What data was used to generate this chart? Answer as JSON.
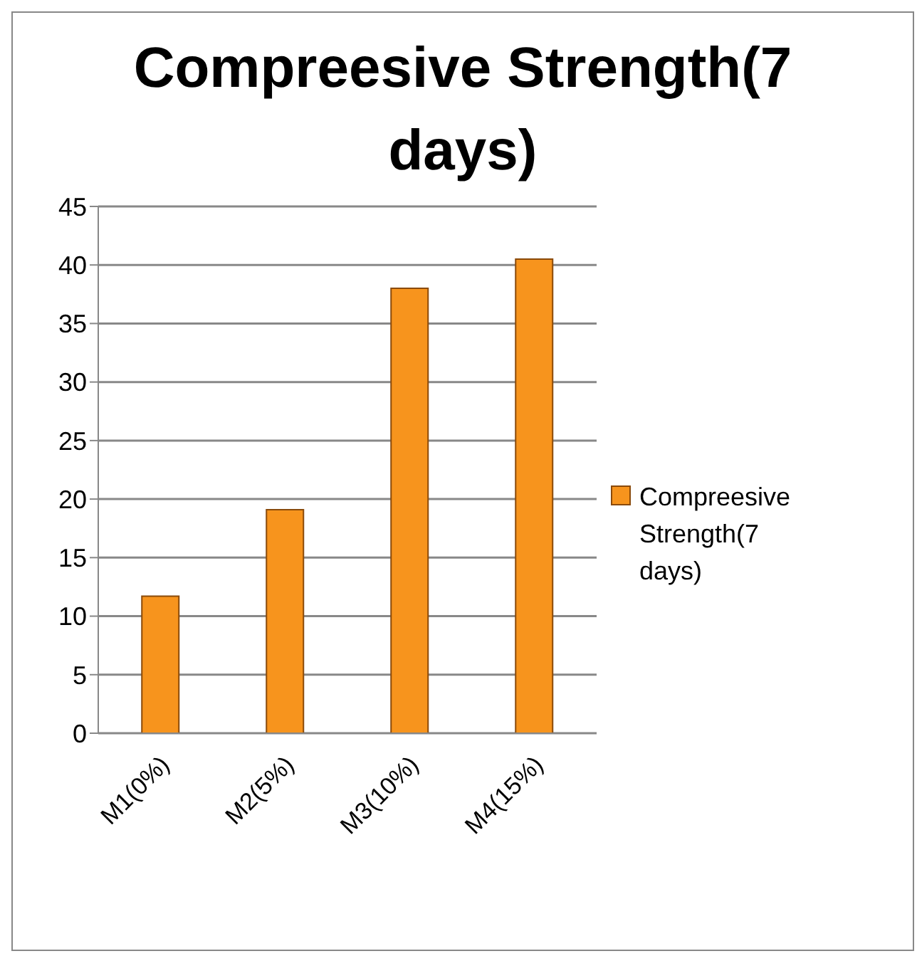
{
  "chart_data": {
    "type": "bar",
    "title": "Compreesive Strength(7 days)",
    "categories": [
      "M1(0%)",
      "M2(5%)",
      "M3(10%)",
      "M4(15%)"
    ],
    "series": [
      {
        "name": "Compreesive Strength(7 days)",
        "color": "#f7941d",
        "values": [
          11.7,
          19.1,
          38,
          40.5
        ]
      }
    ],
    "ylim": [
      0,
      45
    ],
    "yticks": [
      0,
      5,
      10,
      15,
      20,
      25,
      30,
      35,
      40,
      45
    ],
    "grid": "y",
    "legend": "right"
  }
}
